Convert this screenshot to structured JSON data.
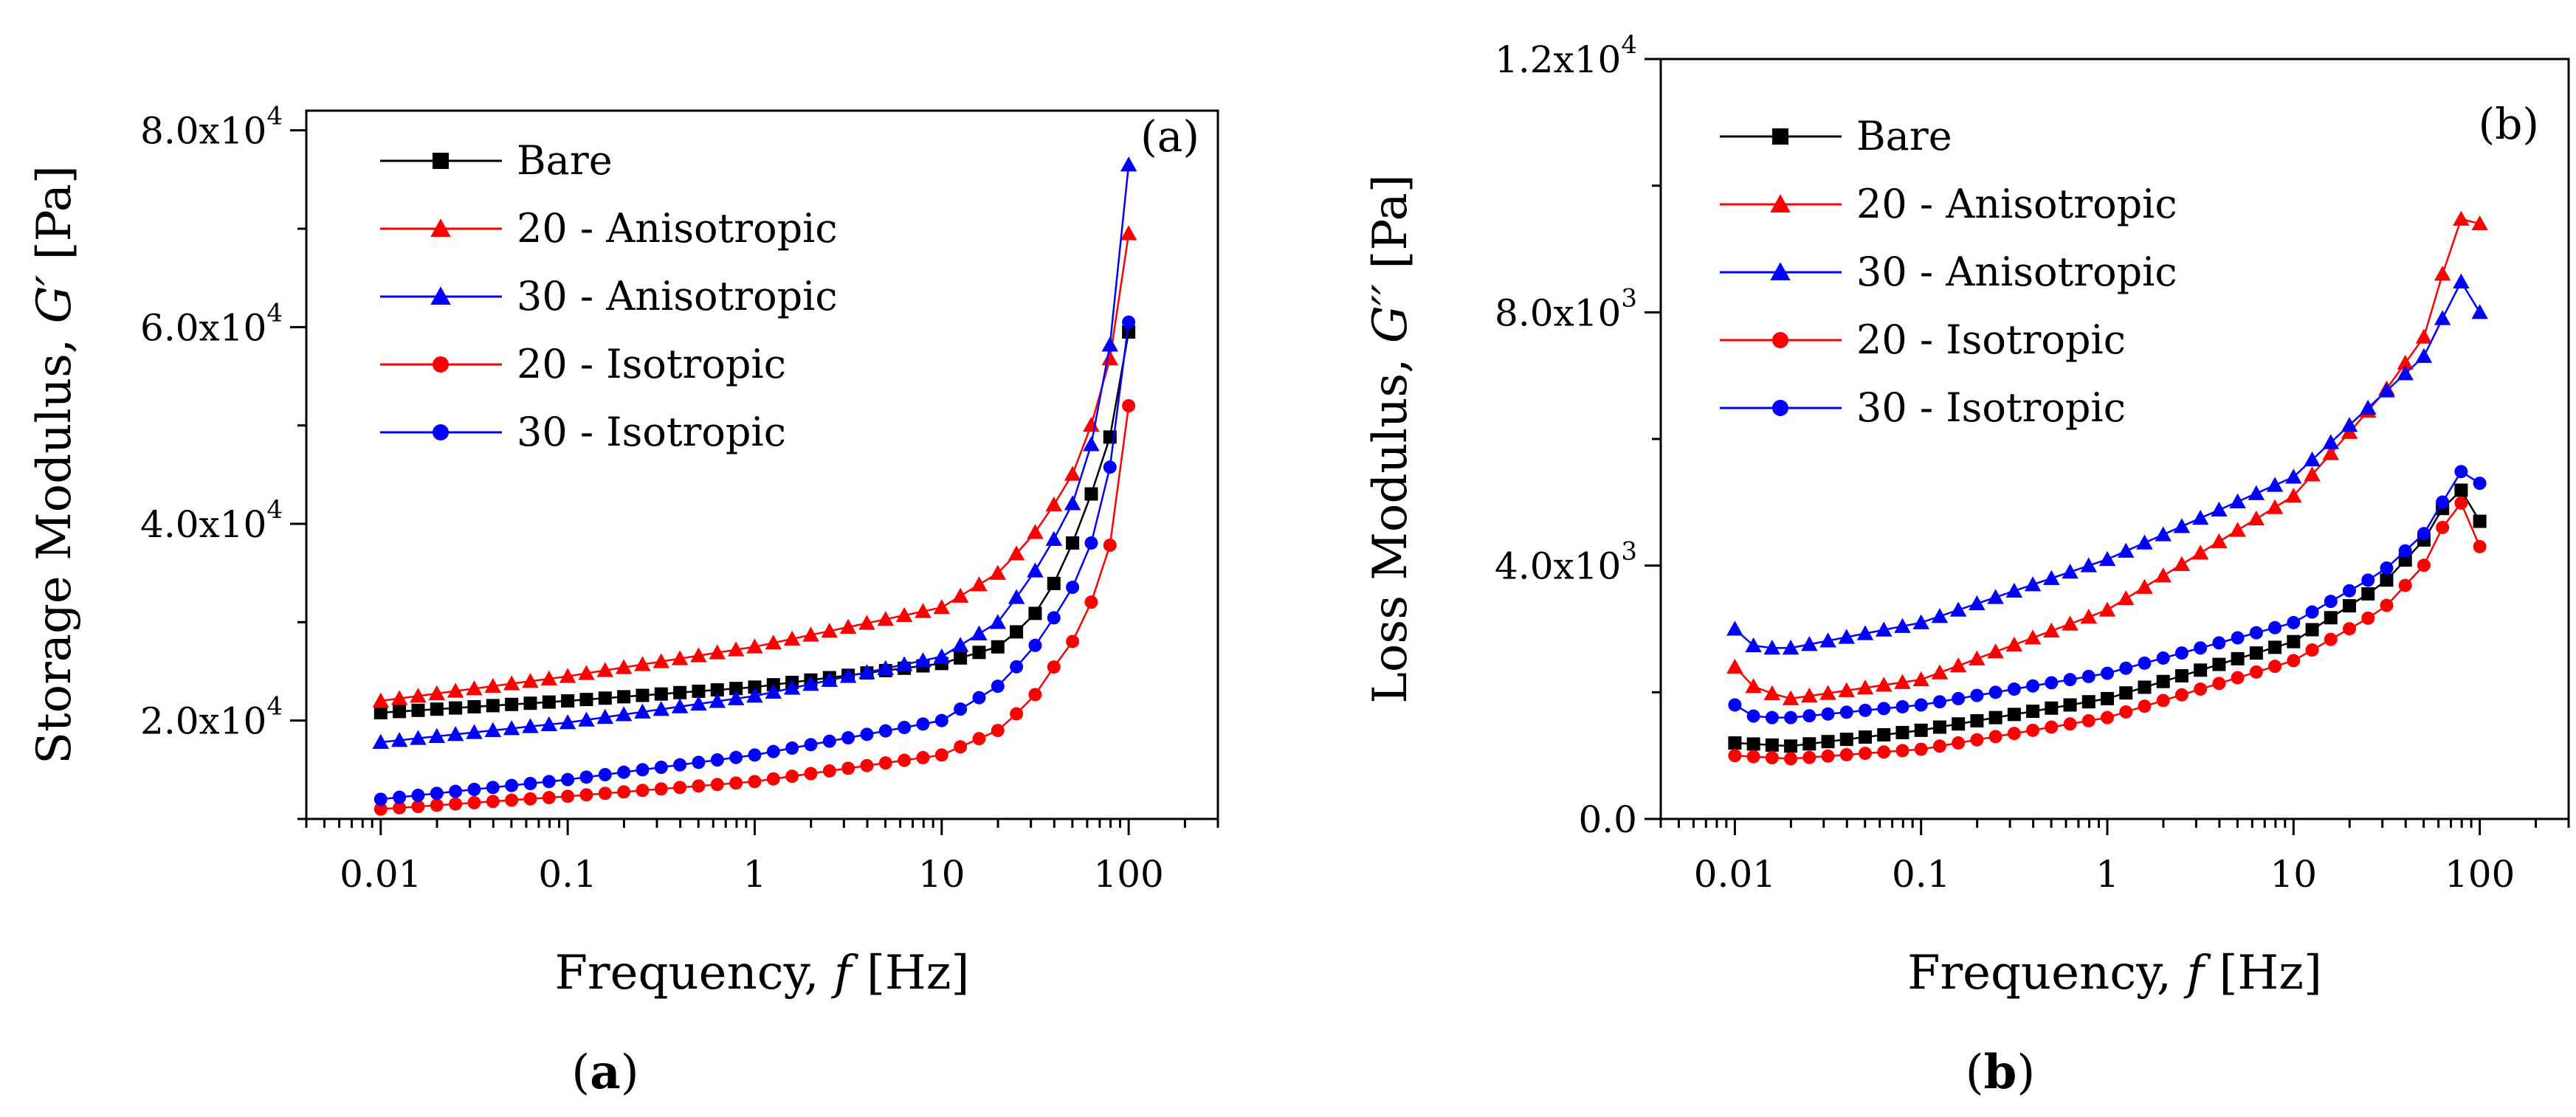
{
  "chart_data": [
    {
      "type": "line",
      "panel_label": "(a)",
      "caption": {
        "open": "(",
        "letter": "a",
        "close": ")"
      },
      "xlabel": {
        "prefix": "Frequency, ",
        "symbol": "f",
        "suffix": " [Hz]"
      },
      "ylabel": {
        "prefix": "Storage Modulus, ",
        "symbol": "G′",
        "suffix": " [Pa]"
      },
      "xscale": "log",
      "xlim": [
        0.004,
        300
      ],
      "ylim": [
        10000,
        82000
      ],
      "xticks": [
        {
          "value": 0.01,
          "label": "0.01"
        },
        {
          "value": 0.1,
          "label": "0.1"
        },
        {
          "value": 1,
          "label": "1"
        },
        {
          "value": 10,
          "label": "10"
        },
        {
          "value": 100,
          "label": "100"
        }
      ],
      "yticks": [
        {
          "value": 20000,
          "mant": "2.0x10",
          "exp": "4"
        },
        {
          "value": 40000,
          "mant": "4.0x10",
          "exp": "4"
        },
        {
          "value": 60000,
          "mant": "6.0x10",
          "exp": "4"
        },
        {
          "value": 80000,
          "mant": "8.0x10",
          "exp": "4"
        }
      ],
      "legend_position": "top-left",
      "grid": false,
      "series": [
        {
          "name": "Bare",
          "color": "#000000",
          "marker": "square",
          "anchors": [
            [
              0.01,
              20800
            ],
            [
              0.1,
              22000
            ],
            [
              1,
              23400
            ],
            [
              10,
              25800
            ],
            [
              20,
              27500
            ],
            [
              30,
              30200
            ],
            [
              40,
              34000
            ],
            [
              50,
              38000
            ],
            [
              63,
              43000
            ],
            [
              80,
              49000
            ],
            [
              100,
              59500
            ]
          ]
        },
        {
          "name": "20 - Anisotropic",
          "color": "#ff0000",
          "marker": "triangle",
          "anchors": [
            [
              0.01,
              22000
            ],
            [
              0.1,
              24500
            ],
            [
              1,
              27500
            ],
            [
              10,
              31500
            ],
            [
              20,
              35000
            ],
            [
              30,
              38500
            ],
            [
              40,
              42000
            ],
            [
              50,
              45000
            ],
            [
              63,
              50000
            ],
            [
              80,
              57000
            ],
            [
              100,
              69500
            ]
          ]
        },
        {
          "name": "30 - Anisotropic",
          "color": "#0000ff",
          "marker": "triangle",
          "anchors": [
            [
              0.01,
              17800
            ],
            [
              0.1,
              19800
            ],
            [
              1,
              22500
            ],
            [
              10,
              26500
            ],
            [
              20,
              30000
            ],
            [
              30,
              34500
            ],
            [
              40,
              38500
            ],
            [
              50,
              42000
            ],
            [
              63,
              48000
            ],
            [
              80,
              58500
            ],
            [
              100,
              76500
            ]
          ]
        },
        {
          "name": "20 - Isotropic",
          "color": "#ff0000",
          "marker": "circle",
          "anchors": [
            [
              0.01,
              11000
            ],
            [
              0.1,
              12300
            ],
            [
              1,
              13800
            ],
            [
              10,
              16500
            ],
            [
              20,
              19000
            ],
            [
              30,
              22000
            ],
            [
              40,
              25500
            ],
            [
              50,
              28000
            ],
            [
              63,
              32000
            ],
            [
              80,
              38000
            ],
            [
              100,
              52000
            ]
          ]
        },
        {
          "name": "30 - Isotropic",
          "color": "#0000ff",
          "marker": "circle",
          "anchors": [
            [
              0.01,
              12000
            ],
            [
              0.1,
              14000
            ],
            [
              1,
              16500
            ],
            [
              10,
              20000
            ],
            [
              20,
              23500
            ],
            [
              30,
              27000
            ],
            [
              40,
              30500
            ],
            [
              50,
              33500
            ],
            [
              63,
              38000
            ],
            [
              80,
              46000
            ],
            [
              100,
              60500
            ]
          ]
        }
      ]
    },
    {
      "type": "line",
      "panel_label": "(b)",
      "caption": {
        "open": "(",
        "letter": "b",
        "close": ")"
      },
      "xlabel": {
        "prefix": "Frequency, ",
        "symbol": "f",
        "suffix": " [Hz]"
      },
      "ylabel": {
        "prefix": "Loss Modulus, ",
        "symbol": "G′′",
        "suffix": " [Pa]"
      },
      "xscale": "log",
      "xlim": [
        0.004,
        300
      ],
      "ylim": [
        0,
        12000
      ],
      "xticks": [
        {
          "value": 0.01,
          "label": "0.01"
        },
        {
          "value": 0.1,
          "label": "0.1"
        },
        {
          "value": 1,
          "label": "1"
        },
        {
          "value": 10,
          "label": "10"
        },
        {
          "value": 100,
          "label": "100"
        }
      ],
      "yticks": [
        {
          "value": 0,
          "mant": "0.0",
          "exp": ""
        },
        {
          "value": 4000,
          "mant": "4.0x10",
          "exp": "3"
        },
        {
          "value": 8000,
          "mant": "8.0x10",
          "exp": "3"
        },
        {
          "value": 12000,
          "mant": "1.2x10",
          "exp": "4"
        }
      ],
      "legend_position": "top-left",
      "grid": false,
      "series": [
        {
          "name": "Bare",
          "color": "#000000",
          "marker": "square",
          "anchors": [
            [
              0.01,
              1200
            ],
            [
              0.02,
              1150
            ],
            [
              0.1,
              1400
            ],
            [
              1,
              1900
            ],
            [
              10,
              2800
            ],
            [
              30,
              3700
            ],
            [
              50,
              4400
            ],
            [
              63,
              4900
            ],
            [
              80,
              5200
            ],
            [
              100,
              4700
            ]
          ]
        },
        {
          "name": "20 - Anisotropic",
          "color": "#ff0000",
          "marker": "triangle",
          "anchors": [
            [
              0.01,
              2400
            ],
            [
              0.013,
              2050
            ],
            [
              0.02,
              1900
            ],
            [
              0.1,
              2200
            ],
            [
              1,
              3300
            ],
            [
              10,
              5100
            ],
            [
              30,
              6700
            ],
            [
              50,
              7600
            ],
            [
              63,
              8600
            ],
            [
              80,
              9500
            ],
            [
              100,
              9400
            ]
          ]
        },
        {
          "name": "30 - Anisotropic",
          "color": "#0000ff",
          "marker": "triangle",
          "anchors": [
            [
              0.01,
              3000
            ],
            [
              0.013,
              2700
            ],
            [
              0.02,
              2700
            ],
            [
              0.1,
              3100
            ],
            [
              1,
              4100
            ],
            [
              10,
              5400
            ],
            [
              30,
              6700
            ],
            [
              50,
              7300
            ],
            [
              63,
              7900
            ],
            [
              80,
              8500
            ],
            [
              100,
              8000
            ]
          ]
        },
        {
          "name": "20 - Isotropic",
          "color": "#ff0000",
          "marker": "circle",
          "anchors": [
            [
              0.01,
              1000
            ],
            [
              0.02,
              950
            ],
            [
              0.1,
              1100
            ],
            [
              1,
              1600
            ],
            [
              10,
              2500
            ],
            [
              30,
              3300
            ],
            [
              50,
              4000
            ],
            [
              63,
              4600
            ],
            [
              80,
              5000
            ],
            [
              100,
              4300
            ]
          ]
        },
        {
          "name": "30 - Isotropic",
          "color": "#0000ff",
          "marker": "circle",
          "anchors": [
            [
              0.01,
              1800
            ],
            [
              0.013,
              1600
            ],
            [
              0.02,
              1600
            ],
            [
              0.1,
              1800
            ],
            [
              1,
              2300
            ],
            [
              10,
              3100
            ],
            [
              30,
              3900
            ],
            [
              50,
              4500
            ],
            [
              63,
              5000
            ],
            [
              80,
              5500
            ],
            [
              100,
              5300
            ]
          ]
        }
      ]
    }
  ]
}
